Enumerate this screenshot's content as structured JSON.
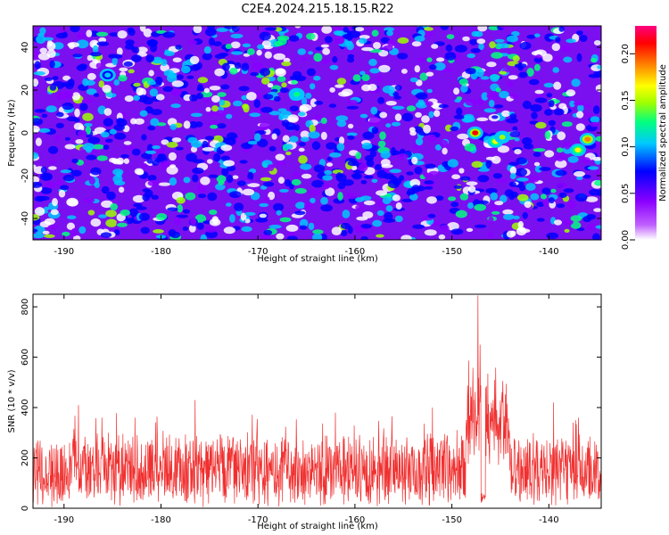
{
  "title": "C2E4.2024.215.18.15.R22",
  "chart_data": [
    {
      "type": "heatmap",
      "title": "C2E4.2024.215.18.15.R22",
      "xlabel": "Height of straight line (km)",
      "ylabel": "Frequency (Hz)",
      "xlim": [
        -193.2,
        -134.6
      ],
      "ylim": [
        -50,
        50
      ],
      "xticks": [
        -190,
        -180,
        -170,
        -160,
        -150,
        -140
      ],
      "yticks": [
        -40,
        -20,
        0,
        20,
        40
      ],
      "colorbar": {
        "label": "Normalized spectral amplitude",
        "range": [
          0,
          0.23
        ],
        "ticks": [
          "0.00",
          "0.05",
          "0.10",
          "0.15",
          "0.20"
        ],
        "colors": [
          "#ffffff",
          "#8a00ff",
          "#0000ff",
          "#00c8ff",
          "#00ff80",
          "#a0ff00",
          "#ffff00",
          "#ff8000",
          "#ff0000",
          "#ff0080"
        ]
      },
      "hotspots": [
        {
          "x": -147.6,
          "y": 0,
          "value": 0.19
        },
        {
          "x": -145.5,
          "y": -4,
          "value": 0.14
        },
        {
          "x": -144.8,
          "y": -2,
          "value": 0.13
        },
        {
          "x": -136.0,
          "y": -3,
          "value": 0.18
        },
        {
          "x": -137.0,
          "y": -8,
          "value": 0.14
        },
        {
          "x": -166.0,
          "y": 18,
          "value": 0.1
        },
        {
          "x": -185.5,
          "y": 27,
          "value": 0.09
        }
      ]
    },
    {
      "type": "line",
      "xlabel": "Height of straight line (km)",
      "ylabel": "SNR (10 * v/v)",
      "xlim": [
        -193.2,
        -134.6
      ],
      "ylim": [
        0,
        850
      ],
      "xticks": [
        -190,
        -180,
        -170,
        -160,
        -150,
        -140
      ],
      "yticks": [
        0,
        200,
        400,
        600,
        800
      ],
      "color": "#f03030",
      "baseline_mean": 150,
      "typical_peak": 300,
      "peaks": [
        {
          "x": -147.3,
          "y": 845
        },
        {
          "x": -147.1,
          "y": 650
        },
        {
          "x": -146.5,
          "y": 480
        },
        {
          "x": -145.6,
          "y": 510
        },
        {
          "x": -144.8,
          "y": 420
        },
        {
          "x": -176.5,
          "y": 430
        },
        {
          "x": -188.5,
          "y": 410
        },
        {
          "x": -152.0,
          "y": 400
        },
        {
          "x": -139.5,
          "y": 420
        },
        {
          "x": -162.0,
          "y": 380
        }
      ]
    }
  ]
}
